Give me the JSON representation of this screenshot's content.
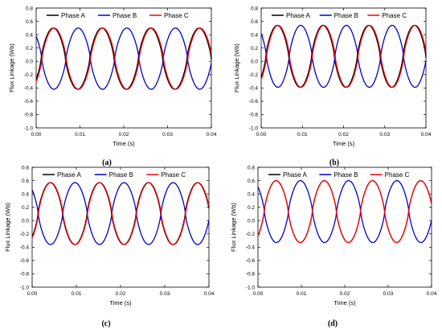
{
  "chart_data": [
    {
      "type": "line",
      "caption": "(a)",
      "xlabel": "Time (s)",
      "ylabel": "Flux Linkage (Wb)",
      "xlim": [
        0,
        0.04
      ],
      "ylim": [
        -1.0,
        0.8
      ],
      "xticks": [
        "0.00",
        "0.01",
        "0.02",
        "0.03",
        "0.04"
      ],
      "yticks": [
        "0.8",
        "0.6",
        "0.4",
        "0.2",
        "0.0",
        "-0.2",
        "-0.4",
        "-0.6",
        "-0.8",
        "-1.0"
      ],
      "legend_position": "top",
      "series": [
        {
          "name": "Phase A",
          "color": "#000000",
          "period": 0.0111,
          "peak_time": 0.0039,
          "max": 0.5,
          "min": -0.42
        },
        {
          "name": "Phase B",
          "color": "#0000cc",
          "period": 0.0111,
          "peak_time": 0.0096,
          "max": 0.5,
          "min": -0.42
        },
        {
          "name": "Phase C",
          "color": "#ff0000",
          "period": 0.0111,
          "peak_time": 0.0152,
          "max": 0.5,
          "min": -0.42
        }
      ]
    },
    {
      "type": "line",
      "caption": "(b)",
      "xlabel": "Time (s)",
      "ylabel": "Flux Linkage (Wb)",
      "xlim": [
        0,
        0.04
      ],
      "ylim": [
        -1.0,
        0.8
      ],
      "xticks": [
        "0.00",
        "0.01",
        "0.02",
        "0.03",
        "0.04"
      ],
      "yticks": [
        "0.8",
        "0.6",
        "0.4",
        "0.2",
        "0.0",
        "-0.2",
        "-0.4",
        "-0.6",
        "-0.8",
        "-1.0"
      ],
      "legend_position": "top",
      "series": [
        {
          "name": "Phase A",
          "color": "#000000",
          "period": 0.0111,
          "peak_time": 0.0039,
          "max": 0.54,
          "min": -0.39
        },
        {
          "name": "Phase B",
          "color": "#0000cc",
          "period": 0.0111,
          "peak_time": 0.0096,
          "max": 0.54,
          "min": -0.39
        },
        {
          "name": "Phase C",
          "color": "#ff0000",
          "period": 0.0111,
          "peak_time": 0.0152,
          "max": 0.54,
          "min": -0.39
        }
      ]
    },
    {
      "type": "line",
      "caption": "(c)",
      "xlabel": "Time (s)",
      "ylabel": "Flux Linkage (Wb)",
      "xlim": [
        0,
        0.04
      ],
      "ylim": [
        -1.0,
        0.8
      ],
      "xticks": [
        "0.00",
        "0.01",
        "0.02",
        "0.03",
        "0.04"
      ],
      "yticks": [
        "0.8",
        "0.6",
        "0.4",
        "0.2",
        "0.0",
        "-0.2",
        "-0.4",
        "-0.6",
        "-0.8",
        "-1.0"
      ],
      "legend_position": "top",
      "series": [
        {
          "name": "Phase A",
          "color": "#000000",
          "period": 0.0111,
          "peak_time": 0.0041,
          "max": 0.57,
          "min": -0.36
        },
        {
          "name": "Phase B",
          "color": "#0000cc",
          "period": 0.0111,
          "peak_time": 0.0097,
          "max": 0.57,
          "min": -0.36
        },
        {
          "name": "Phase C",
          "color": "#ff0000",
          "period": 0.0111,
          "peak_time": 0.0153,
          "max": 0.57,
          "min": -0.36
        }
      ]
    },
    {
      "type": "line",
      "caption": "(d)",
      "xlabel": "Time (s)",
      "ylabel": "Flux Linkage (Wb)",
      "xlim": [
        0,
        0.04
      ],
      "ylim": [
        -1.0,
        0.8
      ],
      "xticks": [
        "0.00",
        "0.01",
        "0.02",
        "0.03",
        "0.04"
      ],
      "yticks": [
        "0.8",
        "0.6",
        "0.4",
        "0.2",
        "0.0",
        "-0.2",
        "-0.4",
        "-0.6",
        "-0.8",
        "-1.0"
      ],
      "legend_position": "top",
      "series": [
        {
          "name": "Phase A",
          "color": "#000000",
          "period": 0.0111,
          "peak_time": 0.0042,
          "max": 0.6,
          "min": -0.33
        },
        {
          "name": "Phase B",
          "color": "#0000cc",
          "period": 0.0111,
          "peak_time": 0.0098,
          "max": 0.6,
          "min": -0.33
        },
        {
          "name": "Phase C",
          "color": "#ff0000",
          "period": 0.0111,
          "peak_time": 0.0153,
          "max": 0.6,
          "min": -0.33
        }
      ]
    }
  ]
}
